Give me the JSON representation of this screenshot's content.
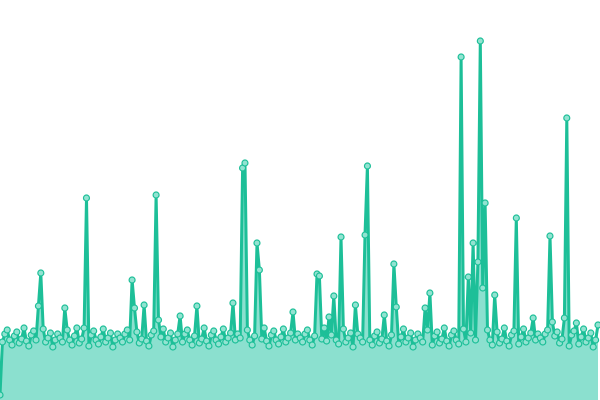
{
  "chart_data": {
    "type": "area",
    "title": "",
    "xlabel": "",
    "ylabel": "",
    "grid": false,
    "legend": "none",
    "ylim": [
      0,
      400
    ],
    "colors": {
      "line": "#1dbf98",
      "fill": "#8be0cf",
      "point_fill": "#92e3d1"
    },
    "series": [
      {
        "values": [
          5,
          58,
          66,
          70,
          60,
          55,
          64,
          68,
          57,
          61,
          72,
          59,
          54,
          65,
          69,
          60,
          94,
          127,
          71,
          58,
          62,
          67,
          53,
          60,
          66,
          62,
          58,
          92,
          70,
          60,
          55,
          64,
          72,
          57,
          61,
          72,
          202,
          54,
          65,
          69,
          60,
          56,
          63,
          71,
          58,
          62,
          67,
          53,
          60,
          66,
          62,
          58,
          66,
          70,
          60,
          120,
          92,
          68,
          57,
          61,
          95,
          59,
          54,
          65,
          69,
          205,
          80,
          63,
          71,
          58,
          62,
          67,
          53,
          60,
          66,
          84,
          58,
          66,
          70,
          60,
          55,
          64,
          94,
          57,
          61,
          72,
          59,
          54,
          65,
          69,
          60,
          56,
          63,
          71,
          58,
          62,
          67,
          97,
          60,
          66,
          62,
          232,
          237,
          70,
          60,
          55,
          64,
          157,
          130,
          61,
          72,
          59,
          54,
          65,
          69,
          60,
          56,
          63,
          71,
          58,
          62,
          67,
          88,
          60,
          66,
          62,
          58,
          66,
          70,
          60,
          55,
          64,
          126,
          124,
          61,
          72,
          59,
          83,
          65,
          104,
          60,
          56,
          163,
          71,
          58,
          62,
          67,
          53,
          95,
          66,
          62,
          58,
          165,
          234,
          60,
          55,
          64,
          68,
          57,
          61,
          85,
          59,
          54,
          65,
          136,
          93,
          56,
          63,
          71,
          58,
          62,
          67,
          53,
          60,
          66,
          62,
          58,
          92,
          70,
          107,
          55,
          64,
          68,
          57,
          61,
          72,
          59,
          54,
          65,
          69,
          60,
          56,
          343,
          71,
          58,
          123,
          67,
          157,
          60,
          138,
          359,
          112,
          197,
          70,
          60,
          55,
          105,
          68,
          57,
          61,
          72,
          59,
          54,
          65,
          69,
          182,
          56,
          63,
          71,
          58,
          62,
          67,
          82,
          60,
          66,
          62,
          58,
          66,
          70,
          164,
          78,
          64,
          68,
          57,
          61,
          82,
          282,
          54,
          65,
          69,
          77,
          56,
          63,
          71,
          58,
          62,
          67,
          53,
          60,
          75
        ]
      }
    ]
  }
}
